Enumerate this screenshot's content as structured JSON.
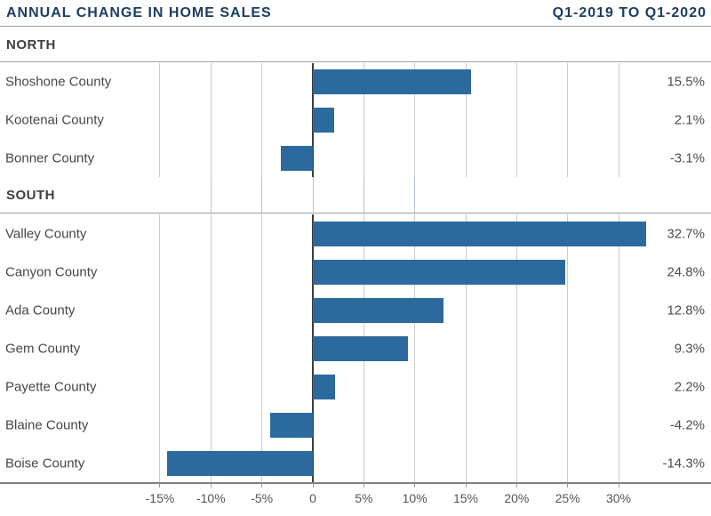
{
  "chart_data": {
    "type": "bar",
    "orientation": "horizontal",
    "title": "ANNUAL CHANGE IN HOME SALES",
    "subtitle": "Q1-2019 TO Q1-2020",
    "unit": "%",
    "grid": true,
    "legend": false,
    "x_ticks": [
      -15,
      -10,
      -5,
      0,
      5,
      10,
      15,
      20,
      25,
      30
    ],
    "x_tick_labels": [
      "-15%",
      "-10%",
      "-5%",
      "0",
      "5%",
      "10%",
      "15%",
      "20%",
      "25%",
      "30%"
    ],
    "band_ticks": [
      -10,
      -5,
      0,
      5,
      10
    ],
    "groups": [
      {
        "label": "NORTH",
        "rows": [
          {
            "category": "Shoshone County",
            "value": 15.5,
            "value_label": "15.5%"
          },
          {
            "category": "Kootenai County",
            "value": 2.1,
            "value_label": "2.1%"
          },
          {
            "category": "Bonner County",
            "value": -3.1,
            "value_label": "-3.1%"
          }
        ]
      },
      {
        "label": "SOUTH",
        "rows": [
          {
            "category": "Valley County",
            "value": 32.7,
            "value_label": "32.7%"
          },
          {
            "category": "Canyon County",
            "value": 24.8,
            "value_label": "24.8%"
          },
          {
            "category": "Ada County",
            "value": 12.8,
            "value_label": "12.8%"
          },
          {
            "category": "Gem County",
            "value": 9.3,
            "value_label": "9.3%"
          },
          {
            "category": "Payette County",
            "value": 2.2,
            "value_label": "2.2%"
          },
          {
            "category": "Blaine County",
            "value": -4.2,
            "value_label": "-4.2%"
          },
          {
            "category": "Boise County",
            "value": -14.3,
            "value_label": "-14.3%"
          }
        ]
      }
    ],
    "colors": {
      "title": "#1d3d63",
      "bar": "#2c6a9e",
      "zero_line": "#3d3d3d",
      "gridline": "#cbcbcb",
      "band_gridline": "#b7c3d1",
      "divider": "#9e9e9e",
      "axis_line": "#808080",
      "label_text": "#464646",
      "axis_text": "#555555"
    }
  }
}
